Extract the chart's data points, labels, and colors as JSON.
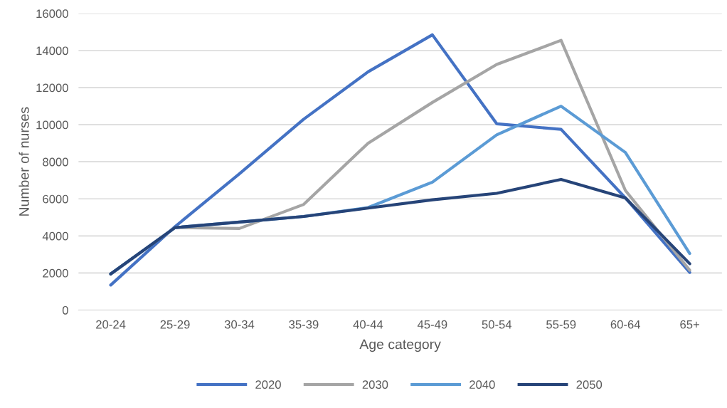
{
  "chart_data": {
    "type": "line",
    "xlabel": "Age category",
    "ylabel": "Number of nurses",
    "categories": [
      "20-24",
      "25-29",
      "30-34",
      "35-39",
      "40-44",
      "45-49",
      "50-54",
      "55-59",
      "60-64",
      "65+"
    ],
    "series": [
      {
        "name": "2020",
        "color": "#4472c4",
        "values": [
          1350,
          4500,
          7350,
          10300,
          12850,
          14850,
          10050,
          9750,
          6050,
          2030
        ]
      },
      {
        "name": "2030",
        "color": "#a5a5a5",
        "values": [
          1950,
          4450,
          4400,
          5700,
          9000,
          11200,
          13250,
          14550,
          6450,
          2150
        ]
      },
      {
        "name": "2040",
        "color": "#5b9bd5",
        "values": [
          1950,
          4450,
          4750,
          5050,
          5530,
          6900,
          9450,
          11000,
          8500,
          3050
        ]
      },
      {
        "name": "2050",
        "color": "#264478",
        "values": [
          1950,
          4450,
          4750,
          5050,
          5500,
          5950,
          6300,
          7050,
          6050,
          2500
        ]
      }
    ],
    "ylim": [
      0,
      16000
    ],
    "yticks": [
      0,
      2000,
      4000,
      6000,
      8000,
      10000,
      12000,
      14000,
      16000
    ],
    "grid": "y",
    "legend": "bottom",
    "marker": "none",
    "line_style": "solid"
  }
}
